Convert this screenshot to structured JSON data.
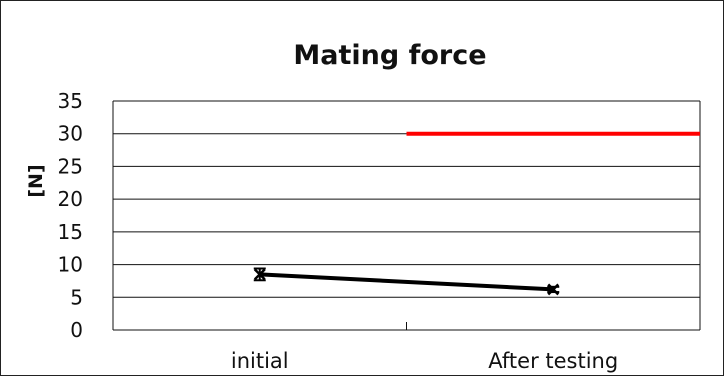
{
  "chart_data": {
    "type": "line",
    "title": "Mating force",
    "xlabel": "",
    "ylabel": "[N]",
    "categories": [
      "initial",
      "After testing"
    ],
    "ylim": [
      0,
      35
    ],
    "yticks": [
      0,
      5,
      10,
      15,
      20,
      25,
      30,
      35
    ],
    "grid": true,
    "legend": "none",
    "series": [
      {
        "values": [
          8.5,
          6.2
        ],
        "error": [
          0.9,
          0.4
        ],
        "color": "#000000",
        "marker": "x"
      }
    ],
    "reference_lines": [
      {
        "y": 30,
        "from_x": 0.5,
        "color": "#ff0000"
      }
    ]
  }
}
